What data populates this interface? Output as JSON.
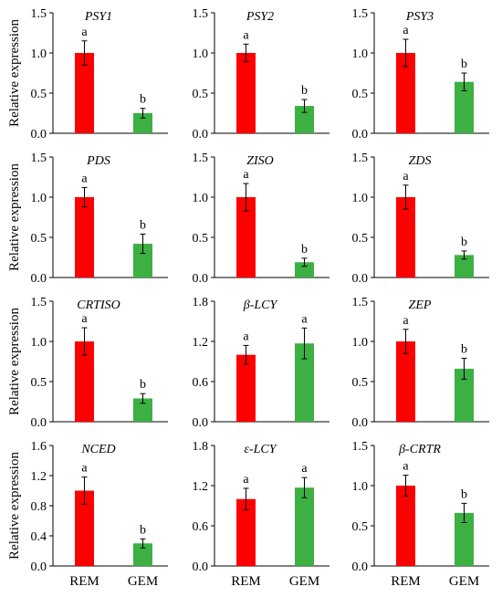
{
  "figure": {
    "ylabel": "Relative expression",
    "categories": [
      "REM",
      "GEM"
    ]
  },
  "colors": {
    "rem": "#ff0000",
    "gem": "#3cb043",
    "axis": "#000000"
  },
  "chart_data": [
    {
      "type": "bar",
      "title": "PSY1",
      "categories": [
        "REM",
        "GEM"
      ],
      "values": [
        1.0,
        0.25
      ],
      "errors": [
        0.15,
        0.06
      ],
      "letters": [
        "a",
        "b"
      ],
      "ylim": [
        0,
        1.5
      ],
      "yticks": [
        "0.0",
        "0.5",
        "1.0",
        "1.5"
      ],
      "ylabel": "Relative expression"
    },
    {
      "type": "bar",
      "title": "PSY2",
      "categories": [
        "REM",
        "GEM"
      ],
      "values": [
        1.0,
        0.34
      ],
      "errors": [
        0.11,
        0.08
      ],
      "letters": [
        "a",
        "b"
      ],
      "ylim": [
        0,
        1.5
      ],
      "yticks": [
        "0.0",
        "0.5",
        "1.0",
        "1.5"
      ],
      "ylabel": ""
    },
    {
      "type": "bar",
      "title": "PSY3",
      "categories": [
        "REM",
        "GEM"
      ],
      "values": [
        1.0,
        0.64
      ],
      "errors": [
        0.17,
        0.11
      ],
      "letters": [
        "a",
        "b"
      ],
      "ylim": [
        0,
        1.5
      ],
      "yticks": [
        "0.0",
        "0.5",
        "1.0",
        "1.5"
      ],
      "ylabel": ""
    },
    {
      "type": "bar",
      "title": "PDS",
      "categories": [
        "REM",
        "GEM"
      ],
      "values": [
        1.0,
        0.42
      ],
      "errors": [
        0.12,
        0.12
      ],
      "letters": [
        "a",
        "b"
      ],
      "ylim": [
        0,
        1.5
      ],
      "yticks": [
        "0.0",
        "0.5",
        "1.0",
        "1.5"
      ],
      "ylabel": "Relative expression"
    },
    {
      "type": "bar",
      "title": "ZISO",
      "categories": [
        "REM",
        "GEM"
      ],
      "values": [
        1.0,
        0.19
      ],
      "errors": [
        0.17,
        0.05
      ],
      "letters": [
        "a",
        "b"
      ],
      "ylim": [
        0,
        1.5
      ],
      "yticks": [
        "0.0",
        "0.5",
        "1.0",
        "1.5"
      ],
      "ylabel": ""
    },
    {
      "type": "bar",
      "title": "ZDS",
      "categories": [
        "REM",
        "GEM"
      ],
      "values": [
        1.0,
        0.28
      ],
      "errors": [
        0.15,
        0.05
      ],
      "letters": [
        "a",
        "b"
      ],
      "ylim": [
        0,
        1.5
      ],
      "yticks": [
        "0.0",
        "0.5",
        "1.0",
        "1.5"
      ],
      "ylabel": ""
    },
    {
      "type": "bar",
      "title": "CRTISO",
      "categories": [
        "REM",
        "GEM"
      ],
      "values": [
        1.0,
        0.29
      ],
      "errors": [
        0.17,
        0.06
      ],
      "letters": [
        "a",
        "b"
      ],
      "ylim": [
        0,
        1.5
      ],
      "yticks": [
        "0.0",
        "0.5",
        "1.0",
        "1.5"
      ],
      "ylabel": "Relative expression"
    },
    {
      "type": "bar",
      "title": "β-LCY",
      "categories": [
        "REM",
        "GEM"
      ],
      "values": [
        1.0,
        1.17
      ],
      "errors": [
        0.14,
        0.23
      ],
      "letters": [
        "a",
        "a"
      ],
      "ylim": [
        0,
        1.8
      ],
      "yticks": [
        "0.0",
        "0.6",
        "1.2",
        "1.8"
      ],
      "ylabel": ""
    },
    {
      "type": "bar",
      "title": "ZEP",
      "categories": [
        "REM",
        "GEM"
      ],
      "values": [
        1.0,
        0.66
      ],
      "errors": [
        0.15,
        0.13
      ],
      "letters": [
        "a",
        "b"
      ],
      "ylim": [
        0,
        1.5
      ],
      "yticks": [
        "0.0",
        "0.5",
        "1.0",
        "1.5"
      ],
      "ylabel": ""
    },
    {
      "type": "bar",
      "title": "NCED",
      "categories": [
        "REM",
        "GEM"
      ],
      "values": [
        1.0,
        0.3
      ],
      "errors": [
        0.18,
        0.06
      ],
      "letters": [
        "a",
        "b"
      ],
      "ylim": [
        0,
        1.6
      ],
      "yticks": [
        "0.0",
        "0.4",
        "0.8",
        "1.2",
        "1.6"
      ],
      "ylabel": "Relative expression"
    },
    {
      "type": "bar",
      "title": "ε-LCY",
      "categories": [
        "REM",
        "GEM"
      ],
      "values": [
        1.0,
        1.17
      ],
      "errors": [
        0.16,
        0.15
      ],
      "letters": [
        "a",
        "a"
      ],
      "ylim": [
        0,
        1.8
      ],
      "yticks": [
        "0.0",
        "0.6",
        "1.2",
        "1.8"
      ],
      "ylabel": ""
    },
    {
      "type": "bar",
      "title": "β-CRTR",
      "categories": [
        "REM",
        "GEM"
      ],
      "values": [
        1.0,
        0.66
      ],
      "errors": [
        0.13,
        0.12
      ],
      "letters": [
        "a",
        "b"
      ],
      "ylim": [
        0,
        1.5
      ],
      "yticks": [
        "0.0",
        "0.5",
        "1.0",
        "1.5"
      ],
      "ylabel": ""
    }
  ]
}
